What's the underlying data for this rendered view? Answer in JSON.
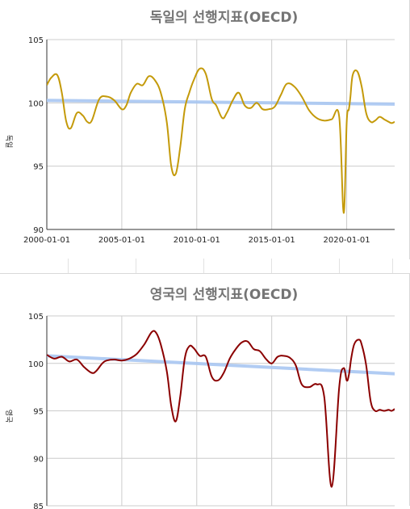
{
  "chart_data": [
    {
      "type": "line",
      "title": "독일의 선행지표(OECD)",
      "ylabel": "독일",
      "xlabel": "",
      "x_ticks": [
        "2000-01-01",
        "2005-01-01",
        "2010-01-01",
        "2015-01-01",
        "2020-01-01"
      ],
      "y_ticks": [
        90,
        95,
        100,
        105
      ],
      "ylim": [
        90,
        105
      ],
      "xlim": [
        2000.0,
        2023.2
      ],
      "grid": true,
      "series": [
        {
          "color": "#c49a0a",
          "x": [
            2000.0,
            2000.3,
            2000.7,
            2001.0,
            2001.3,
            2001.6,
            2002.0,
            2002.4,
            2002.7,
            2003.0,
            2003.5,
            2004.0,
            2004.5,
            2005.0,
            2005.3,
            2005.6,
            2006.0,
            2006.4,
            2006.8,
            2007.2,
            2007.6,
            2008.0,
            2008.3,
            2008.6,
            2008.9,
            2009.2,
            2009.5,
            2009.8,
            2010.2,
            2010.6,
            2011.0,
            2011.3,
            2011.7,
            2012.0,
            2012.4,
            2012.8,
            2013.2,
            2013.6,
            2014.0,
            2014.4,
            2014.8,
            2015.2,
            2015.6,
            2016.0,
            2016.5,
            2017.0,
            2017.5,
            2018.0,
            2018.5,
            2019.0,
            2019.5,
            2019.8,
            2020.0,
            2020.15,
            2020.25,
            2020.4,
            2020.7,
            2021.0,
            2021.3,
            2021.6,
            2021.9,
            2022.2,
            2022.5,
            2022.8,
            2023.0,
            2023.2
          ],
          "y": [
            101.4,
            102.0,
            102.2,
            100.8,
            98.5,
            98.0,
            99.2,
            99.0,
            98.5,
            98.6,
            100.3,
            100.5,
            100.2,
            99.5,
            99.8,
            100.8,
            101.5,
            101.4,
            102.1,
            101.8,
            100.8,
            98.5,
            95.0,
            94.4,
            96.5,
            99.5,
            100.8,
            101.8,
            102.7,
            102.3,
            100.3,
            99.8,
            98.8,
            99.2,
            100.2,
            100.8,
            99.8,
            99.6,
            100.0,
            99.5,
            99.5,
            99.7,
            100.6,
            101.5,
            101.3,
            100.5,
            99.4,
            98.8,
            98.6,
            98.7,
            98.9,
            91.3,
            98.5,
            99.5,
            100.5,
            102.2,
            102.5,
            101.3,
            99.2,
            98.5,
            98.6,
            98.9,
            98.7,
            98.5,
            98.4,
            98.5
          ]
        },
        {
          "color": "#a9c7f2",
          "x": [
            2000.0,
            2023.2
          ],
          "y": [
            100.2,
            99.9
          ]
        }
      ]
    },
    {
      "type": "line",
      "title": "영국의 선행지표(OECD)",
      "ylabel": "영국",
      "xlabel": "",
      "y_ticks": [
        85,
        90,
        95,
        100,
        105
      ],
      "ylim": [
        85,
        105
      ],
      "xlim": [
        2000.0,
        2023.2
      ],
      "grid": true,
      "series": [
        {
          "color": "#8b0000",
          "x": [
            2000.0,
            2000.5,
            2001.0,
            2001.5,
            2002.0,
            2002.5,
            2003.0,
            2003.3,
            2003.7,
            2004.0,
            2004.5,
            2005.0,
            2005.5,
            2006.0,
            2006.5,
            2007.0,
            2007.3,
            2007.6,
            2008.0,
            2008.3,
            2008.6,
            2008.9,
            2009.2,
            2009.5,
            2009.8,
            2010.2,
            2010.6,
            2011.0,
            2011.4,
            2011.8,
            2012.2,
            2012.6,
            2013.0,
            2013.4,
            2013.8,
            2014.2,
            2014.6,
            2015.0,
            2015.4,
            2015.8,
            2016.2,
            2016.6,
            2017.0,
            2017.5,
            2018.0,
            2018.5,
            2019.0,
            2019.5,
            2019.8,
            2020.0,
            2020.15,
            2020.3,
            2020.5,
            2020.8,
            2021.0,
            2021.3,
            2021.6,
            2021.9,
            2022.2,
            2022.5,
            2022.8,
            2023.0,
            2023.2
          ],
          "y": [
            100.9,
            100.5,
            100.7,
            100.2,
            100.4,
            99.6,
            99.0,
            99.2,
            100.0,
            100.3,
            100.4,
            100.3,
            100.5,
            101.0,
            102.0,
            103.3,
            103.2,
            102.0,
            99.2,
            95.5,
            93.9,
            96.5,
            100.5,
            101.8,
            101.6,
            100.8,
            100.7,
            98.6,
            98.2,
            99.0,
            100.5,
            101.5,
            102.2,
            102.3,
            101.5,
            101.3,
            100.5,
            100.0,
            100.7,
            100.8,
            100.6,
            99.8,
            97.8,
            97.5,
            97.8,
            96.5,
            87.0,
            97.5,
            99.5,
            98.2,
            98.8,
            100.5,
            102.0,
            102.5,
            102.0,
            99.8,
            96.0,
            95.0,
            95.1,
            95.0,
            95.1,
            95.0,
            95.2
          ]
        },
        {
          "color": "#a9c7f2",
          "x": [
            2000.0,
            2023.2
          ],
          "y": [
            100.8,
            98.9
          ]
        }
      ]
    }
  ]
}
